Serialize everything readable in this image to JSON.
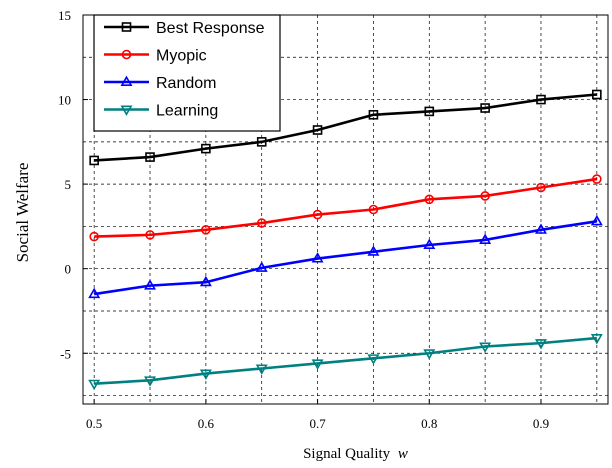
{
  "chart_data": {
    "type": "line",
    "xlabel": "Signal Quality",
    "xlabel_var": "w",
    "ylabel": "Social Welfare",
    "xlim": [
      0.49,
      0.96
    ],
    "ylim": [
      -8,
      15
    ],
    "x_ticks": [
      0.5,
      0.6,
      0.7,
      0.8,
      0.9
    ],
    "x_tick_labels": [
      "0.5",
      "0.6",
      "0.7",
      "0.8",
      "0.9"
    ],
    "y_ticks": [
      -5,
      0,
      5,
      10,
      15
    ],
    "y_tick_labels": [
      "-5",
      "0",
      "5",
      "10",
      "15"
    ],
    "x_grid": [
      0.5,
      0.55,
      0.6,
      0.65,
      0.7,
      0.75,
      0.8,
      0.85,
      0.9,
      0.95
    ],
    "y_grid": [
      -7.5,
      -5,
      -2.5,
      0,
      2.5,
      5,
      7.5,
      10,
      12.5
    ],
    "grid": true,
    "legend_position": "top-left",
    "x": [
      0.5,
      0.55,
      0.6,
      0.65,
      0.7,
      0.75,
      0.8,
      0.85,
      0.9,
      0.95
    ],
    "series": [
      {
        "name": "Best Response",
        "color": "#000000",
        "marker": "square",
        "values": [
          6.4,
          6.6,
          7.1,
          7.5,
          8.2,
          9.1,
          9.3,
          9.5,
          10.0,
          10.3
        ]
      },
      {
        "name": "Myopic",
        "color": "#ff0000",
        "marker": "circle",
        "values": [
          1.9,
          2.0,
          2.3,
          2.7,
          3.2,
          3.5,
          4.1,
          4.3,
          4.8,
          5.3
        ]
      },
      {
        "name": "Random",
        "color": "#0000ff",
        "marker": "triangle-up",
        "values": [
          -1.5,
          -1.0,
          -0.8,
          0.05,
          0.6,
          1.0,
          1.4,
          1.7,
          2.3,
          2.8
        ]
      },
      {
        "name": "Learning",
        "color": "#008080",
        "marker": "triangle-down",
        "values": [
          -6.8,
          -6.6,
          -6.2,
          -5.9,
          -5.6,
          -5.3,
          -5.0,
          -4.6,
          -4.4,
          -4.1
        ]
      }
    ]
  }
}
